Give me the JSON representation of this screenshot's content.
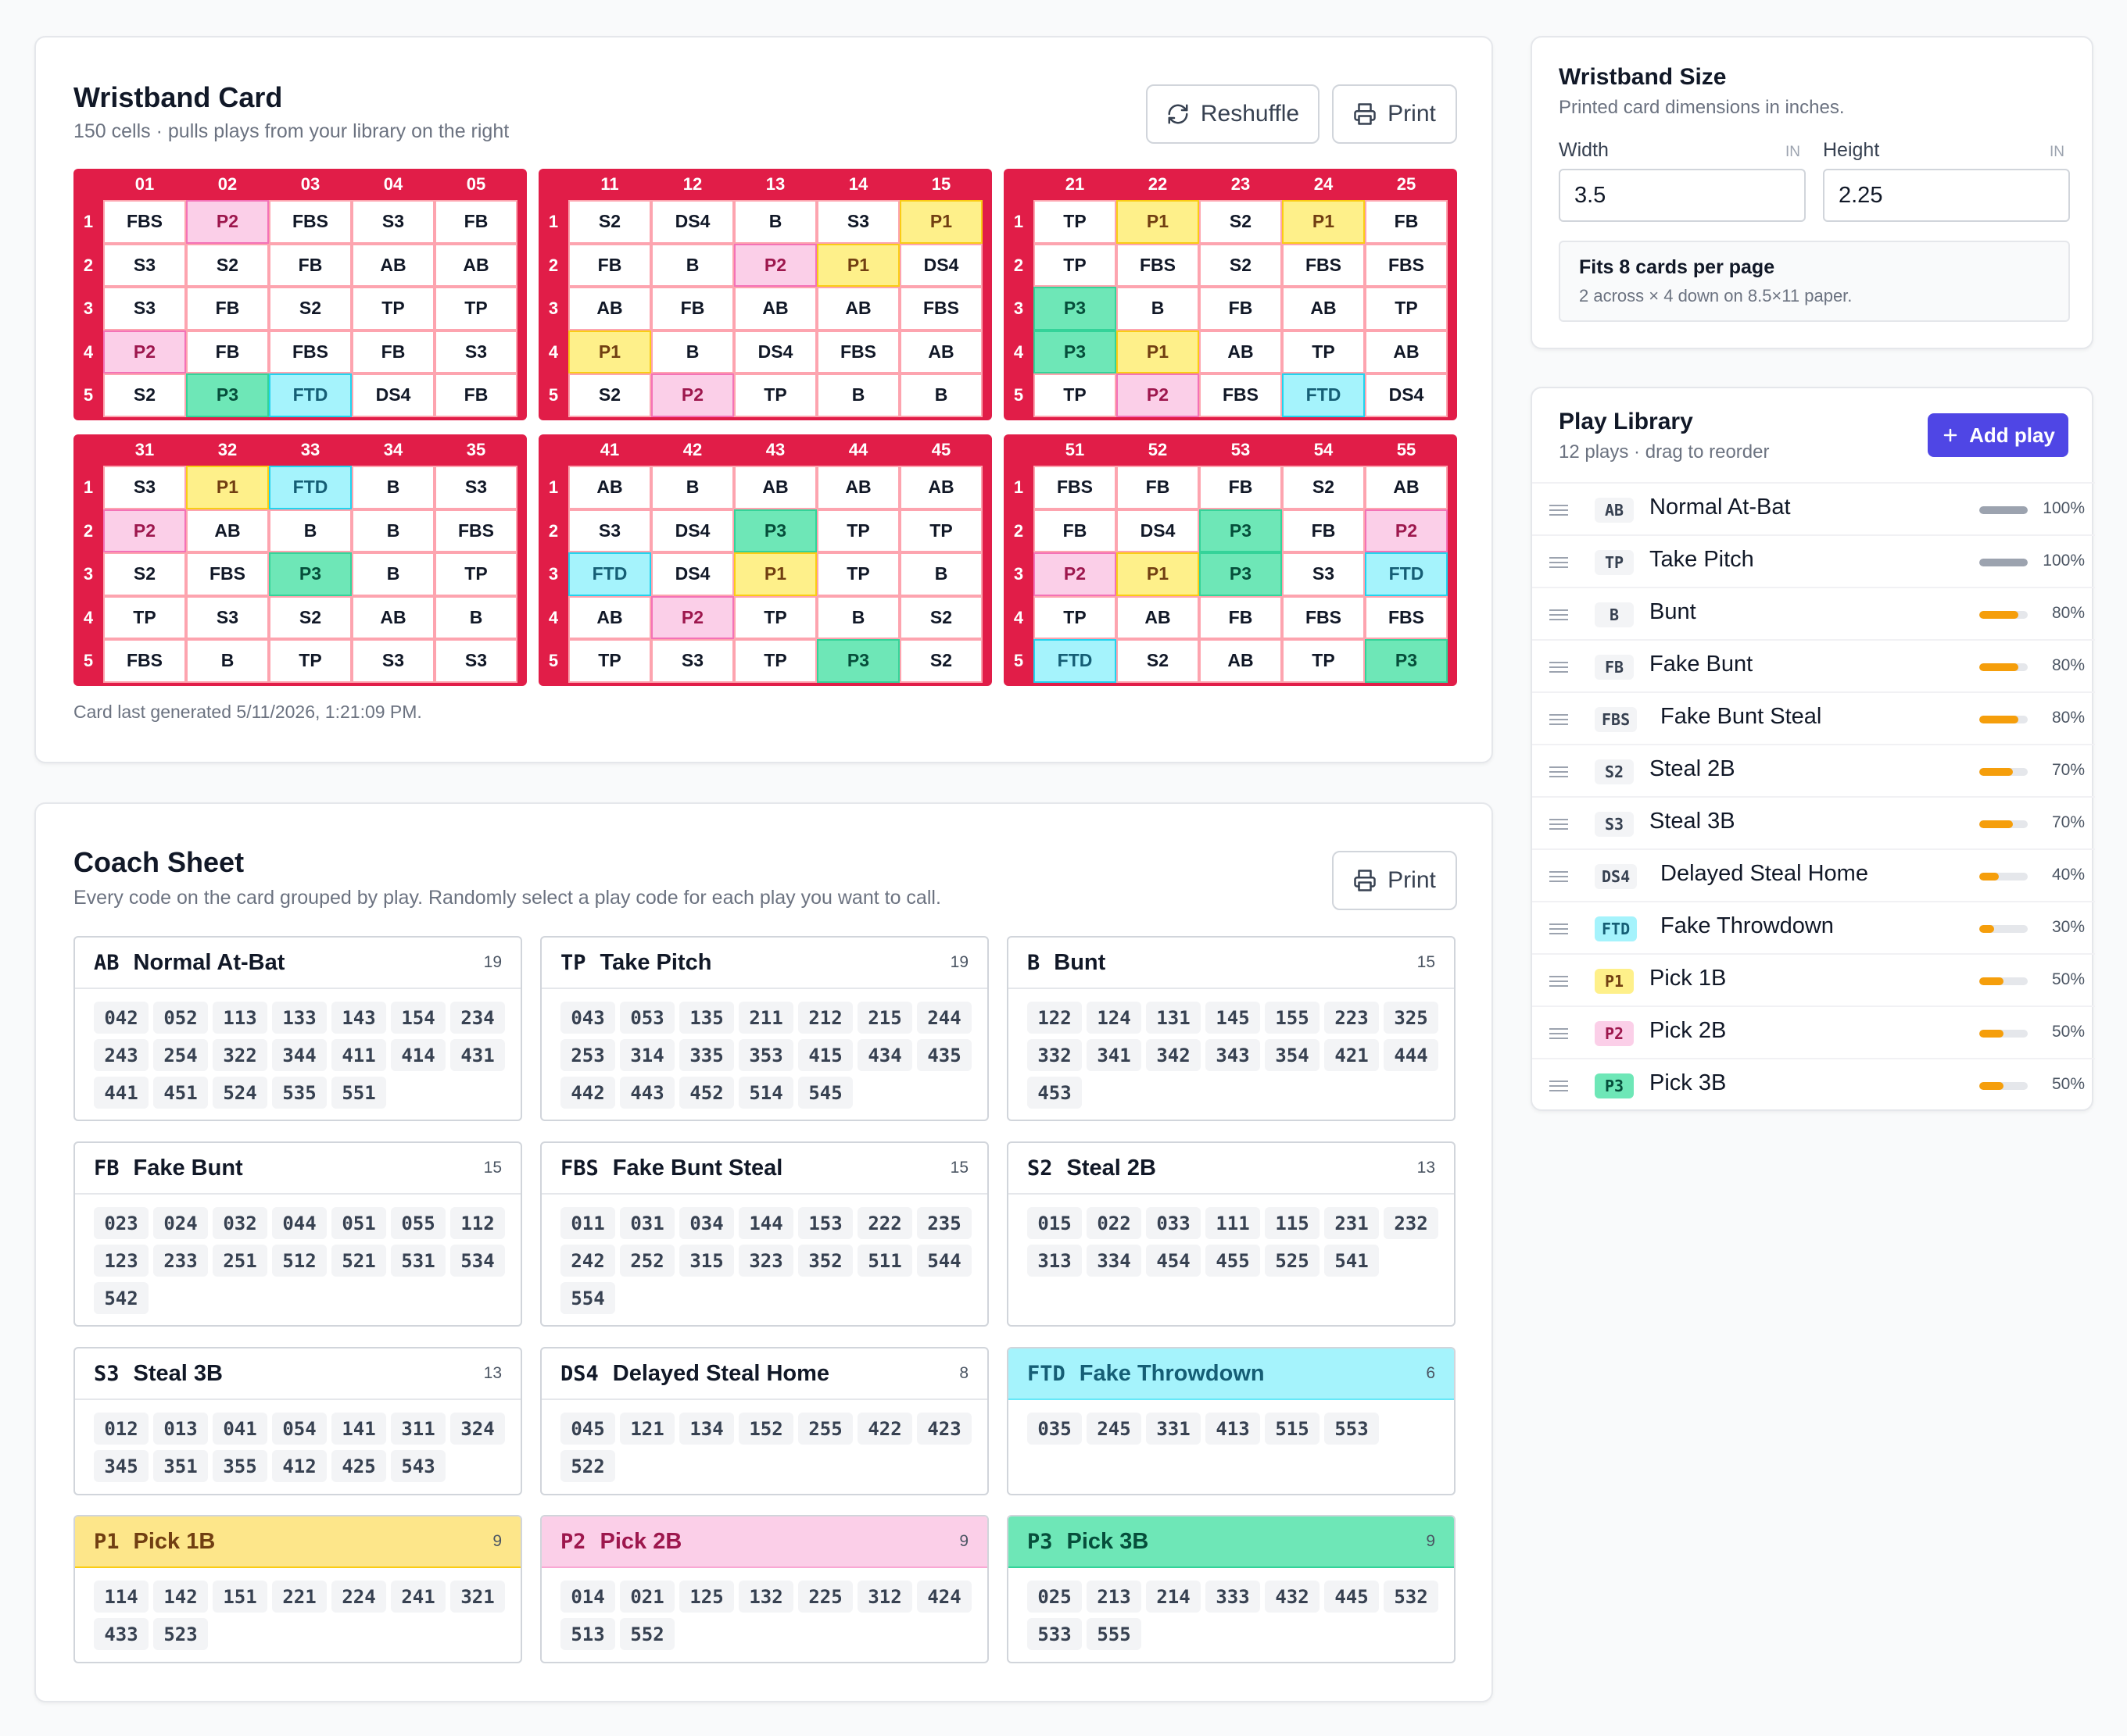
{
  "card": {
    "title": "Wristband Card",
    "subtitle": "150 cells · pulls plays from your library on the right",
    "reshuffle_label": "Reshuffle",
    "print_label": "Print",
    "footer": "Card last generated 5/11/2026, 1:21:09 PM.",
    "row_numbers": [
      "1",
      "2",
      "3",
      "4",
      "5"
    ],
    "grids": [
      {
        "cols": [
          "01",
          "02",
          "03",
          "04",
          "05"
        ],
        "rows": [
          [
            "FBS",
            "P2",
            "FBS",
            "S3",
            "FB"
          ],
          [
            "S3",
            "S2",
            "FB",
            "AB",
            "AB"
          ],
          [
            "S3",
            "FB",
            "S2",
            "TP",
            "TP"
          ],
          [
            "P2",
            "FB",
            "FBS",
            "FB",
            "S3"
          ],
          [
            "S2",
            "P3",
            "FTD",
            "DS4",
            "FB"
          ]
        ]
      },
      {
        "cols": [
          "11",
          "12",
          "13",
          "14",
          "15"
        ],
        "rows": [
          [
            "S2",
            "DS4",
            "B",
            "S3",
            "P1"
          ],
          [
            "FB",
            "B",
            "P2",
            "P1",
            "DS4"
          ],
          [
            "AB",
            "FB",
            "AB",
            "AB",
            "FBS"
          ],
          [
            "P1",
            "B",
            "DS4",
            "FBS",
            "AB"
          ],
          [
            "S2",
            "P2",
            "TP",
            "B",
            "B"
          ]
        ]
      },
      {
        "cols": [
          "21",
          "22",
          "23",
          "24",
          "25"
        ],
        "rows": [
          [
            "TP",
            "P1",
            "S2",
            "P1",
            "FB"
          ],
          [
            "TP",
            "FBS",
            "S2",
            "FBS",
            "FBS"
          ],
          [
            "P3",
            "B",
            "FB",
            "AB",
            "TP"
          ],
          [
            "P3",
            "P1",
            "AB",
            "TP",
            "AB"
          ],
          [
            "TP",
            "P2",
            "FBS",
            "FTD",
            "DS4"
          ]
        ]
      },
      {
        "cols": [
          "31",
          "32",
          "33",
          "34",
          "35"
        ],
        "rows": [
          [
            "S3",
            "P1",
            "FTD",
            "B",
            "S3"
          ],
          [
            "P2",
            "AB",
            "B",
            "B",
            "FBS"
          ],
          [
            "S2",
            "FBS",
            "P3",
            "B",
            "TP"
          ],
          [
            "TP",
            "S3",
            "S2",
            "AB",
            "B"
          ],
          [
            "FBS",
            "B",
            "TP",
            "S3",
            "S3"
          ]
        ]
      },
      {
        "cols": [
          "41",
          "42",
          "43",
          "44",
          "45"
        ],
        "rows": [
          [
            "AB",
            "B",
            "AB",
            "AB",
            "AB"
          ],
          [
            "S3",
            "DS4",
            "P3",
            "TP",
            "TP"
          ],
          [
            "FTD",
            "DS4",
            "P1",
            "TP",
            "B"
          ],
          [
            "AB",
            "P2",
            "TP",
            "B",
            "S2"
          ],
          [
            "TP",
            "S3",
            "TP",
            "P3",
            "S2"
          ]
        ]
      },
      {
        "cols": [
          "51",
          "52",
          "53",
          "54",
          "55"
        ],
        "rows": [
          [
            "FBS",
            "FB",
            "FB",
            "S2",
            "AB"
          ],
          [
            "FB",
            "DS4",
            "P3",
            "FB",
            "P2"
          ],
          [
            "P2",
            "P1",
            "P3",
            "S3",
            "FTD"
          ],
          [
            "TP",
            "AB",
            "FB",
            "FBS",
            "FBS"
          ],
          [
            "FTD",
            "S2",
            "AB",
            "TP",
            "P3"
          ]
        ]
      }
    ]
  },
  "coach": {
    "title": "Coach Sheet",
    "subtitle": "Every code on the card grouped by play. Randomly select a play code for each play you want to call.",
    "print_label": "Print",
    "groups": [
      {
        "code": "AB",
        "name": "Normal At-Bat",
        "count": "19",
        "codes": [
          "042",
          "052",
          "113",
          "133",
          "143",
          "154",
          "234",
          "243",
          "254",
          "322",
          "344",
          "411",
          "414",
          "431",
          "441",
          "451",
          "524",
          "535",
          "551"
        ]
      },
      {
        "code": "TP",
        "name": "Take Pitch",
        "count": "19",
        "codes": [
          "043",
          "053",
          "135",
          "211",
          "212",
          "215",
          "244",
          "253",
          "314",
          "335",
          "353",
          "415",
          "434",
          "435",
          "442",
          "443",
          "452",
          "514",
          "545"
        ]
      },
      {
        "code": "B",
        "name": "Bunt",
        "count": "15",
        "codes": [
          "122",
          "124",
          "131",
          "145",
          "155",
          "223",
          "325",
          "332",
          "341",
          "342",
          "343",
          "354",
          "421",
          "444",
          "453"
        ]
      },
      {
        "code": "FB",
        "name": "Fake Bunt",
        "count": "15",
        "codes": [
          "023",
          "024",
          "032",
          "044",
          "051",
          "055",
          "112",
          "123",
          "233",
          "251",
          "512",
          "521",
          "531",
          "534",
          "542"
        ]
      },
      {
        "code": "FBS",
        "name": "Fake Bunt Steal",
        "count": "15",
        "codes": [
          "011",
          "031",
          "034",
          "144",
          "153",
          "222",
          "235",
          "242",
          "252",
          "315",
          "323",
          "352",
          "511",
          "544",
          "554"
        ]
      },
      {
        "code": "S2",
        "name": "Steal 2B",
        "count": "13",
        "codes": [
          "015",
          "022",
          "033",
          "111",
          "115",
          "231",
          "232",
          "313",
          "334",
          "454",
          "455",
          "525",
          "541"
        ]
      },
      {
        "code": "S3",
        "name": "Steal 3B",
        "count": "13",
        "codes": [
          "012",
          "013",
          "041",
          "054",
          "141",
          "311",
          "324",
          "345",
          "351",
          "355",
          "412",
          "425",
          "543"
        ]
      },
      {
        "code": "DS4",
        "name": "Delayed Steal Home",
        "count": "8",
        "codes": [
          "045",
          "121",
          "134",
          "152",
          "255",
          "422",
          "423",
          "522"
        ]
      },
      {
        "code": "FTD",
        "name": "Fake Throwdown",
        "count": "6",
        "codes": [
          "035",
          "245",
          "331",
          "413",
          "515",
          "553"
        ]
      },
      {
        "code": "P1",
        "name": "Pick 1B",
        "count": "9",
        "codes": [
          "114",
          "142",
          "151",
          "221",
          "224",
          "241",
          "321",
          "433",
          "523"
        ]
      },
      {
        "code": "P2",
        "name": "Pick 2B",
        "count": "9",
        "codes": [
          "014",
          "021",
          "125",
          "132",
          "225",
          "312",
          "424",
          "513",
          "552"
        ]
      },
      {
        "code": "P3",
        "name": "Pick 3B",
        "count": "9",
        "codes": [
          "025",
          "213",
          "214",
          "333",
          "432",
          "445",
          "532",
          "533",
          "555"
        ]
      }
    ]
  },
  "size": {
    "title": "Wristband Size",
    "subtitle": "Printed card dimensions in inches.",
    "width_label": "Width",
    "height_label": "Height",
    "unit": "IN",
    "width_value": "3.5",
    "height_value": "2.25",
    "fit_title": "Fits 8 cards per page",
    "fit_detail": "2 across × 4 down on 8.5×11 paper."
  },
  "library": {
    "title": "Play Library",
    "subtitle": "12 plays · drag to reorder",
    "add_label": "Add play",
    "bar_colors": {
      "full": "#9ca3af",
      "partial": "#f59e0b"
    },
    "plays": [
      {
        "code": "AB",
        "name": "Normal At-Bat",
        "pct": "100%",
        "weight": 1.0
      },
      {
        "code": "TP",
        "name": "Take Pitch",
        "pct": "100%",
        "weight": 1.0
      },
      {
        "code": "B",
        "name": "Bunt",
        "pct": "80%",
        "weight": 0.8
      },
      {
        "code": "FB",
        "name": "Fake Bunt",
        "pct": "80%",
        "weight": 0.8
      },
      {
        "code": "FBS",
        "name": "Fake Bunt Steal",
        "pct": "80%",
        "weight": 0.8
      },
      {
        "code": "S2",
        "name": "Steal 2B",
        "pct": "70%",
        "weight": 0.7
      },
      {
        "code": "S3",
        "name": "Steal 3B",
        "pct": "70%",
        "weight": 0.7
      },
      {
        "code": "DS4",
        "name": "Delayed Steal Home",
        "pct": "40%",
        "weight": 0.4
      },
      {
        "code": "FTD",
        "name": "Fake Throwdown",
        "pct": "30%",
        "weight": 0.3
      },
      {
        "code": "P1",
        "name": "Pick 1B",
        "pct": "50%",
        "weight": 0.5
      },
      {
        "code": "P2",
        "name": "Pick 2B",
        "pct": "50%",
        "weight": 0.5
      },
      {
        "code": "P3",
        "name": "Pick 3B",
        "pct": "50%",
        "weight": 0.5
      }
    ]
  }
}
